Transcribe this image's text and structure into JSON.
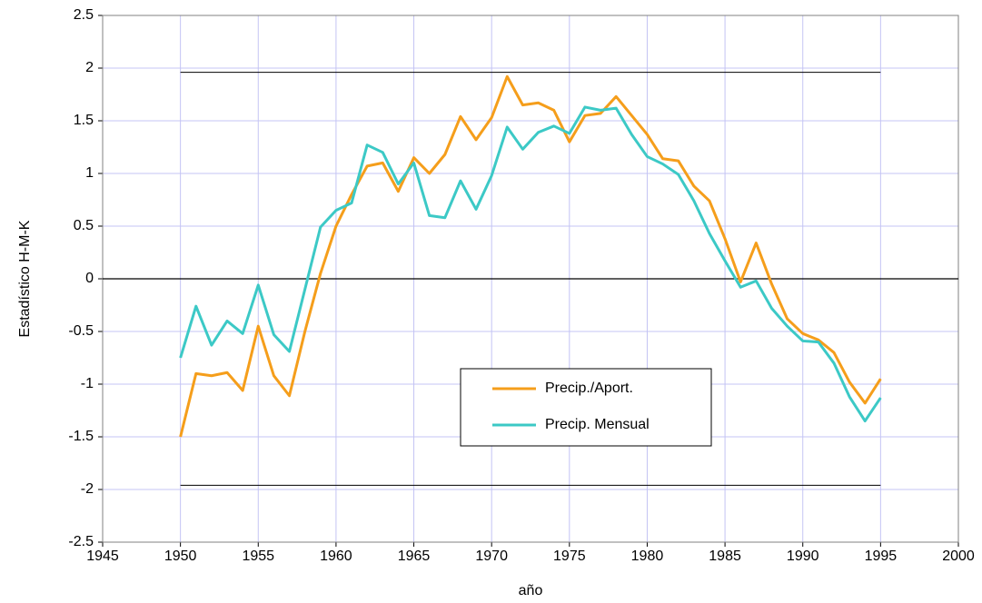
{
  "chart_data": {
    "type": "line",
    "xlabel": "año",
    "ylabel": "Estadístico H-M-K",
    "x": [
      1950,
      1951,
      1952,
      1953,
      1954,
      1955,
      1956,
      1957,
      1958,
      1959,
      1960,
      1961,
      1962,
      1963,
      1964,
      1965,
      1966,
      1967,
      1968,
      1969,
      1970,
      1971,
      1972,
      1973,
      1974,
      1975,
      1976,
      1977,
      1978,
      1979,
      1980,
      1981,
      1982,
      1983,
      1984,
      1985,
      1986,
      1987,
      1988,
      1989,
      1990,
      1991,
      1992,
      1993,
      1994,
      1995
    ],
    "series": [
      {
        "name": "Precip./Aport.",
        "color": "#f59e1b",
        "values": [
          -1.5,
          -0.9,
          -0.92,
          -0.89,
          -1.06,
          -0.45,
          -0.92,
          -1.11,
          -0.5,
          0.05,
          0.5,
          0.8,
          1.07,
          1.1,
          0.83,
          1.15,
          1.0,
          1.18,
          1.54,
          1.32,
          1.53,
          1.92,
          1.65,
          1.67,
          1.6,
          1.3,
          1.55,
          1.57,
          1.73,
          1.55,
          1.37,
          1.14,
          1.12,
          0.88,
          0.74,
          0.38,
          -0.03,
          0.34,
          -0.05,
          -0.38,
          -0.52,
          -0.58,
          -0.7,
          -0.98,
          -1.18,
          -0.95
        ]
      },
      {
        "name": "Precip. Mensual",
        "color": "#3cc9c6",
        "values": [
          -0.75,
          -0.26,
          -0.63,
          -0.4,
          -0.52,
          -0.06,
          -0.53,
          -0.69,
          -0.1,
          0.49,
          0.65,
          0.72,
          1.27,
          1.2,
          0.9,
          1.1,
          0.6,
          0.58,
          0.93,
          0.66,
          0.98,
          1.44,
          1.23,
          1.39,
          1.45,
          1.38,
          1.63,
          1.6,
          1.62,
          1.37,
          1.16,
          1.09,
          0.99,
          0.74,
          0.43,
          0.17,
          -0.08,
          -0.02,
          -0.28,
          -0.45,
          -0.59,
          -0.6,
          -0.8,
          -1.12,
          -1.35,
          -1.13
        ]
      }
    ],
    "reference_lines": [
      {
        "x": [
          1950,
          1995
        ],
        "value": 1.96,
        "color": "#000000"
      },
      {
        "x": [
          1950,
          1995
        ],
        "value": -1.96,
        "color": "#000000"
      }
    ],
    "xlim": [
      1945,
      2000
    ],
    "xticks": [
      1945,
      1950,
      1955,
      1960,
      1965,
      1970,
      1975,
      1980,
      1985,
      1990,
      1995,
      2000
    ],
    "ylim": [
      -2.5,
      2.5
    ],
    "yticks": [
      2.5,
      2,
      1.5,
      1,
      0.5,
      0,
      -0.5,
      -1,
      -1.5,
      -2,
      -2.5
    ],
    "grid": true,
    "grid_color": "#c4c4f4",
    "legend_position": "lower center"
  }
}
